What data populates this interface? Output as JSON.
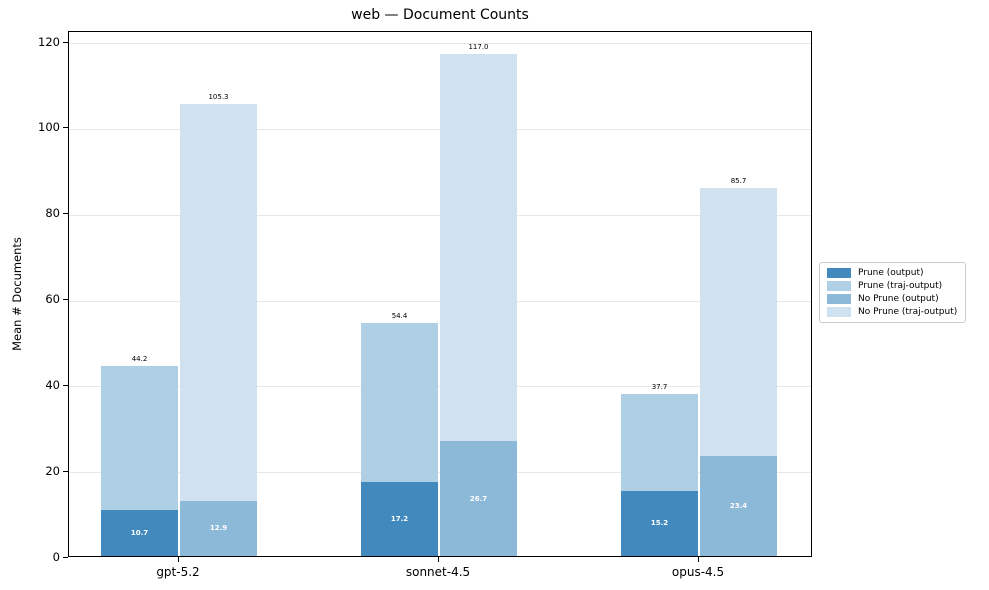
{
  "chart_data": {
    "type": "bar",
    "title": "web — Document Counts",
    "ylabel": "Mean # Documents",
    "xlabel": "",
    "categories": [
      "gpt-5.2",
      "sonnet-4.5",
      "opus-4.5"
    ],
    "series": [
      {
        "name": "Prune (output)",
        "color": "#4289be",
        "overlay": "inner",
        "pair": 0,
        "values": [
          10.7,
          17.2,
          15.2
        ]
      },
      {
        "name": "Prune (traj-output)",
        "color": "#aecfe4",
        "overlay": "outer",
        "pair": 0,
        "values": [
          44.2,
          54.4,
          37.7
        ]
      },
      {
        "name": "No Prune (output)",
        "color": "#8db9d9",
        "overlay": "inner",
        "pair": 1,
        "values": [
          12.9,
          26.7,
          23.4
        ]
      },
      {
        "name": "No Prune (traj-output)",
        "color": "#d0e2ef",
        "overlay": "outer",
        "pair": 1,
        "values": [
          105.3,
          117.0,
          85.7
        ]
      }
    ],
    "yticks": [
      0,
      20,
      40,
      60,
      80,
      100,
      120
    ],
    "ylim": [
      0,
      122.6
    ],
    "grid": "horizontal",
    "gridline_color": "#e8e8e8",
    "legend_position": "right-outside",
    "value_label_inner_color": "#ffffff",
    "value_label_outer_color": "#000000"
  }
}
